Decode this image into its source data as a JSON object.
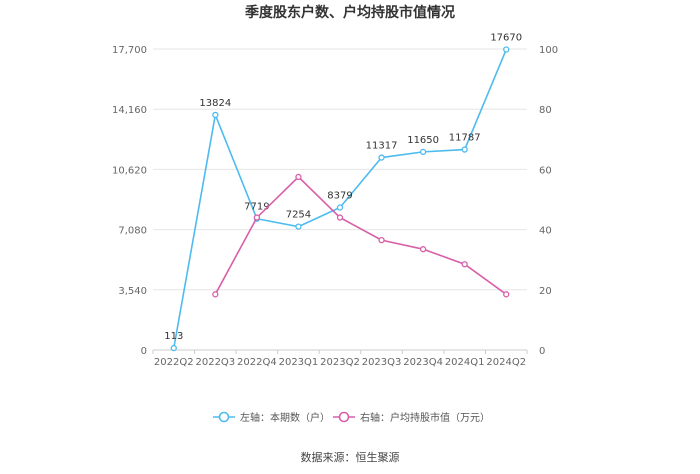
{
  "chart_data": {
    "type": "line",
    "title": "季度股东户数、户均持股市值情况",
    "categories": [
      "2022Q2",
      "2022Q3",
      "2022Q4",
      "2023Q1",
      "2023Q2",
      "2023Q3",
      "2023Q4",
      "2024Q1",
      "2024Q2"
    ],
    "left_axis": {
      "ticks": [
        "0",
        "3,540",
        "7,080",
        "10,620",
        "14,160",
        "17,700"
      ],
      "ylim": [
        0,
        17700
      ]
    },
    "right_axis": {
      "ticks": [
        "0",
        "20",
        "40",
        "60",
        "80",
        "100"
      ],
      "ylim": [
        0,
        100
      ]
    },
    "series": [
      {
        "name": "左轴：本期数（户）",
        "axis": "left",
        "color": "#4dbbee",
        "values": [
          113,
          13824,
          7719,
          7254,
          8379,
          11317,
          11650,
          11787,
          17670
        ],
        "labels": [
          "113",
          "13824",
          "7719",
          "7254",
          "8379",
          "11317",
          "11650",
          "11787",
          "17670"
        ]
      },
      {
        "name": "右轴：户均持股市值（万元）",
        "axis": "right",
        "color": "#d95fa8",
        "values": [
          null,
          18.5,
          44.0,
          57.5,
          44.0,
          36.5,
          33.5,
          28.5,
          18.5
        ]
      }
    ],
    "grid": "horizontal",
    "legend_position": "bottom"
  },
  "source_text": "数据来源：恒生聚源"
}
